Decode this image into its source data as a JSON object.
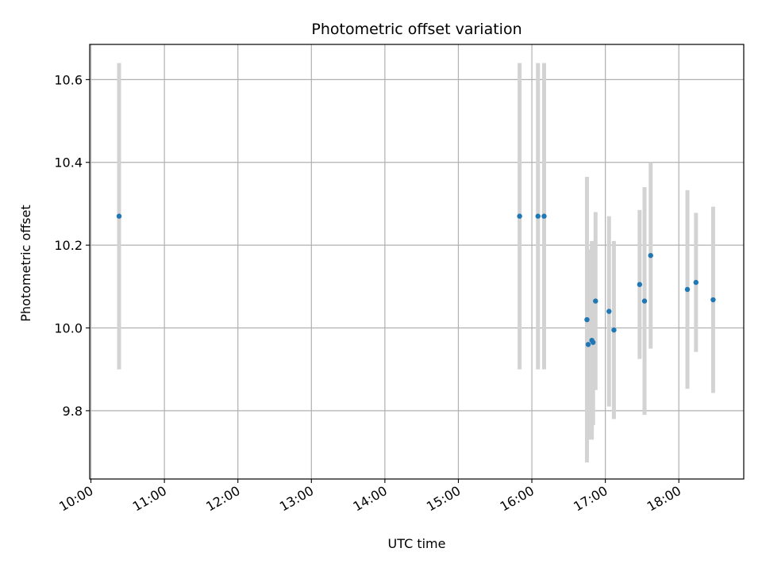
{
  "chart_data": {
    "type": "scatter",
    "title": "Photometric offset variation",
    "xlabel": "UTC time",
    "ylabel": "Photometric offset",
    "xlim": [
      "09:59",
      "18:53"
    ],
    "ylim": [
      9.635,
      10.685
    ],
    "x_ticks": [
      "10:00",
      "11:00",
      "12:00",
      "13:00",
      "14:00",
      "15:00",
      "16:00",
      "17:00",
      "18:00"
    ],
    "y_ticks": [
      9.8,
      10.0,
      10.2,
      10.4,
      10.6
    ],
    "y_tick_labels": [
      "9.8",
      "10.0",
      "10.2",
      "10.4",
      "10.6"
    ],
    "grid": true,
    "point_color": "#1f77b4",
    "errorbar_color": "#d3d3d3",
    "points": [
      {
        "t": "10:23",
        "y": 10.27,
        "yerr": 0.37
      },
      {
        "t": "15:50",
        "y": 10.27,
        "yerr": 0.37
      },
      {
        "t": "16:05",
        "y": 10.27,
        "yerr": 0.37
      },
      {
        "t": "16:10",
        "y": 10.27,
        "yerr": 0.37
      },
      {
        "t": "16:45",
        "y": 10.02,
        "yerr": 0.345
      },
      {
        "t": "16:46",
        "y": 9.96,
        "yerr": 0.23
      },
      {
        "t": "16:49",
        "y": 9.97,
        "yerr": 0.24
      },
      {
        "t": "16:50",
        "y": 9.965,
        "yerr": 0.2
      },
      {
        "t": "16:52",
        "y": 10.065,
        "yerr": 0.215
      },
      {
        "t": "17:03",
        "y": 10.04,
        "yerr": 0.23
      },
      {
        "t": "17:07",
        "y": 9.995,
        "yerr": 0.215
      },
      {
        "t": "17:28",
        "y": 10.105,
        "yerr": 0.18
      },
      {
        "t": "17:32",
        "y": 10.065,
        "yerr": 0.275
      },
      {
        "t": "17:37",
        "y": 10.175,
        "yerr": 0.225
      },
      {
        "t": "18:07",
        "y": 10.093,
        "yerr": 0.24
      },
      {
        "t": "18:14",
        "y": 10.11,
        "yerr": 0.168
      },
      {
        "t": "18:28",
        "y": 10.068,
        "yerr": 0.225
      }
    ]
  }
}
